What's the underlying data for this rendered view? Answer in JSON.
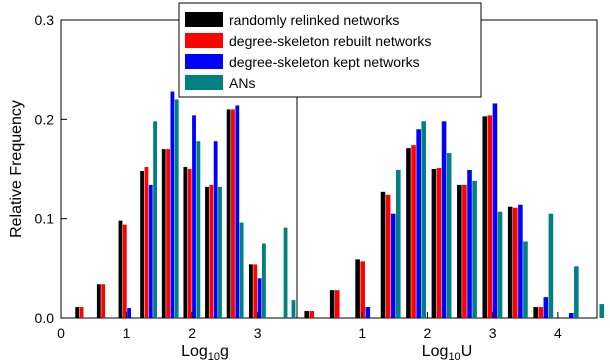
{
  "chart_data": [
    {
      "type": "bar",
      "panel": "left",
      "xlabel_main": "Log",
      "xlabel_sub": "10",
      "xlabel_var": "g",
      "ylabel": "Relative Frequency",
      "xlim": [
        0,
        3.6
      ],
      "ylim": [
        0,
        0.3
      ],
      "x_ticks": [
        "0",
        "1",
        "2",
        "3"
      ],
      "y_ticks": [
        "0.0",
        "0.1",
        "0.2",
        "0.3"
      ],
      "bin_centers": [
        0.35,
        0.68,
        1.01,
        1.34,
        1.67,
        2.0,
        2.33,
        2.66,
        3.0,
        3.33
      ],
      "series": [
        {
          "name": "randomly relinked networks",
          "color": "#000000",
          "values": [
            0.011,
            0.034,
            0.098,
            0.148,
            0.17,
            0.152,
            0.132,
            0.21,
            0.054,
            0.0
          ]
        },
        {
          "name": "degree-skeleton rebuilt networks",
          "color": "#ff0000",
          "values": [
            0.011,
            0.034,
            0.094,
            0.152,
            0.17,
            0.15,
            0.134,
            0.21,
            0.054,
            0.0
          ]
        },
        {
          "name": "degree-skeleton kept networks",
          "color": "#0000ff",
          "values": [
            0.0,
            0.0,
            0.01,
            0.134,
            0.228,
            0.204,
            0.178,
            0.214,
            0.04,
            0.0
          ]
        },
        {
          "name": "ANs",
          "color": "#008080",
          "values": [
            0.0,
            0.0,
            0.0,
            0.198,
            0.22,
            0.178,
            0.132,
            0.096,
            0.075,
            0.091
          ]
        }
      ],
      "extra_bar": {
        "x": 3.55,
        "series": "ANs",
        "value": 0.018
      }
    },
    {
      "type": "bar",
      "panel": "right",
      "xlabel_main": "Log",
      "xlabel_sub": "10",
      "xlabel_var": "U",
      "xlim": [
        0,
        4.6
      ],
      "ylim": [
        0,
        0.3
      ],
      "x_ticks": [
        "1",
        "2",
        "3",
        "4"
      ],
      "bin_centers": [
        0.27,
        0.66,
        1.05,
        1.44,
        1.83,
        2.22,
        2.61,
        3.0,
        3.39,
        3.78,
        4.17,
        4.56
      ],
      "series": [
        {
          "name": "randomly relinked networks",
          "color": "#000000",
          "values": [
            0.007,
            0.028,
            0.059,
            0.127,
            0.171,
            0.15,
            0.134,
            0.203,
            0.112,
            0.011,
            0.0,
            0.0
          ]
        },
        {
          "name": "degree-skeleton rebuilt networks",
          "color": "#ff0000",
          "values": [
            0.007,
            0.028,
            0.057,
            0.124,
            0.174,
            0.151,
            0.134,
            0.204,
            0.111,
            0.011,
            0.0,
            0.0
          ]
        },
        {
          "name": "degree-skeleton kept networks",
          "color": "#0000ff",
          "values": [
            0.0,
            0.0,
            0.011,
            0.105,
            0.19,
            0.198,
            0.149,
            0.216,
            0.114,
            0.021,
            0.005,
            0.0
          ]
        },
        {
          "name": "ANs",
          "color": "#008080",
          "values": [
            0.0,
            0.0,
            0.0,
            0.149,
            0.198,
            0.166,
            0.138,
            0.107,
            0.077,
            0.105,
            0.052,
            0.014
          ]
        }
      ]
    }
  ],
  "legend": {
    "placement": "top-center",
    "entries": [
      {
        "label": "randomly relinked networks",
        "color": "#000000"
      },
      {
        "label": "degree-skeleton rebuilt networks",
        "color": "#ff0000"
      },
      {
        "label": "degree-skeleton kept networks",
        "color": "#0000ff"
      },
      {
        "label": "ANs",
        "color": "#008080"
      }
    ]
  }
}
